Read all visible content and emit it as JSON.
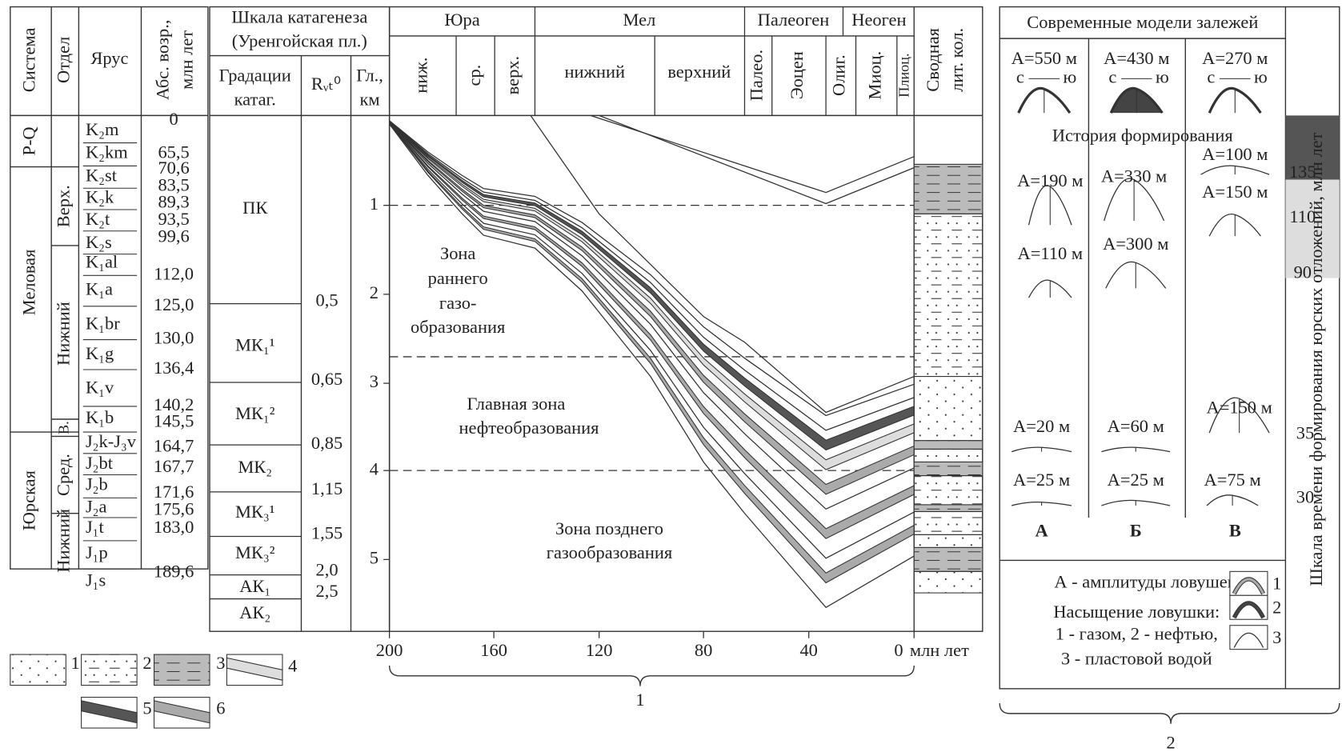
{
  "left_table": {
    "system_header": "Система",
    "series_header": "Отдел",
    "stage_header": "Ярус",
    "age_header_1": "Абс. возр.,",
    "age_header_2": "млн лет",
    "systems": [
      "P-Q",
      "Меловая",
      "Юрская"
    ],
    "series": [
      "Верх.",
      "Нижний",
      "В.",
      "Сред.",
      "Нижний"
    ],
    "stages": [
      "K₂m",
      "K₂km",
      "K₂st",
      "K₂k",
      "K₂t",
      "K₂s",
      "K₁al",
      "K₁a",
      "K₁br",
      "K₁g",
      "K₁v",
      "K₁b",
      "J₂k-J₃v",
      "J₂bt",
      "J₂b",
      "J₂a",
      "J₁t",
      "J₁p",
      "J₁s"
    ],
    "ages": [
      "0",
      "65,5",
      "70,6",
      "83,5",
      "89,3",
      "93,5",
      "99,6",
      "112,0",
      "125,0",
      "130,0",
      "136,4",
      "140,2",
      "145,5",
      "164,7",
      "167,7",
      "171,6",
      "175,6",
      "183,0",
      "189,6"
    ]
  },
  "catagenesis": {
    "title_1": "Шкала катагенеза",
    "title_2": "(Уренгойская пл.)",
    "grade_header_1": "Градации",
    "grade_header_2": "катаг.",
    "r_header": "Rᵥₜ⁰",
    "depth_header_1": "Гл.,",
    "depth_header_2": "км",
    "grades": [
      "ПК",
      "МК₁¹",
      "МК₁²",
      "МК₂",
      "МК₃¹",
      "МК₃²",
      "АК₁",
      "АК₂"
    ],
    "r_values": [
      "0,5",
      "0,65",
      "0,85",
      "1,15",
      "1,55",
      "2,0",
      "2,5"
    ]
  },
  "chart": {
    "periods": [
      "Юра",
      "Мел",
      "Палеоген",
      "Неоген"
    ],
    "epochs": [
      "ниж.",
      "ср.",
      "верх.",
      "нижний",
      "верхний",
      "Палео.",
      "Эоцен",
      "Олиг.",
      "Миоц.",
      "Плиоц."
    ],
    "age_ticks": [
      "200",
      "160",
      "120",
      "80",
      "40",
      "0"
    ],
    "age_unit": "млн лет",
    "depth_ticks": [
      "1",
      "2",
      "3",
      "4",
      "5"
    ],
    "zones": [
      [
        "Зона",
        "раннего",
        "газо-",
        "образования"
      ],
      [
        "Главная зона",
        "нефтеобразования"
      ],
      [
        "Зона позднего",
        "газообразования"
      ]
    ],
    "brace_label": "1"
  },
  "lith_column": {
    "header_1": "Сводная",
    "header_2": "лит. кол."
  },
  "models": {
    "title": "Современные модели залежей",
    "present": [
      "А=550 м",
      "А=430 м",
      "А=270 м"
    ],
    "north": "с",
    "south": "ю",
    "history_title": "История формирования",
    "history": [
      [
        "А=190 м",
        "А=110 м",
        "А=20 м",
        "А=25 м"
      ],
      [
        "А=330 м",
        "А=300 м",
        "А=60 м",
        "А=25 м"
      ],
      [
        "А=100 м",
        "А=150 м",
        "А=150 м",
        "А=75 м"
      ]
    ],
    "columns": [
      "А",
      "Б",
      "В"
    ],
    "legend": [
      "А - амплитуды ловушек",
      "Насыщение ловушки:",
      "1 - газом, 2 - нефтью,",
      "3 - пластовой водой"
    ],
    "legend_numbers": [
      "1",
      "2",
      "3"
    ],
    "brace_label": "2"
  },
  "time_scale": {
    "title": "Шкала времени формирования юрских отложений, млн лет",
    "ticks": [
      "135",
      "110",
      "90",
      "35",
      "30"
    ]
  },
  "legend": [
    "1",
    "2",
    "3",
    "4",
    "5",
    "6"
  ]
}
